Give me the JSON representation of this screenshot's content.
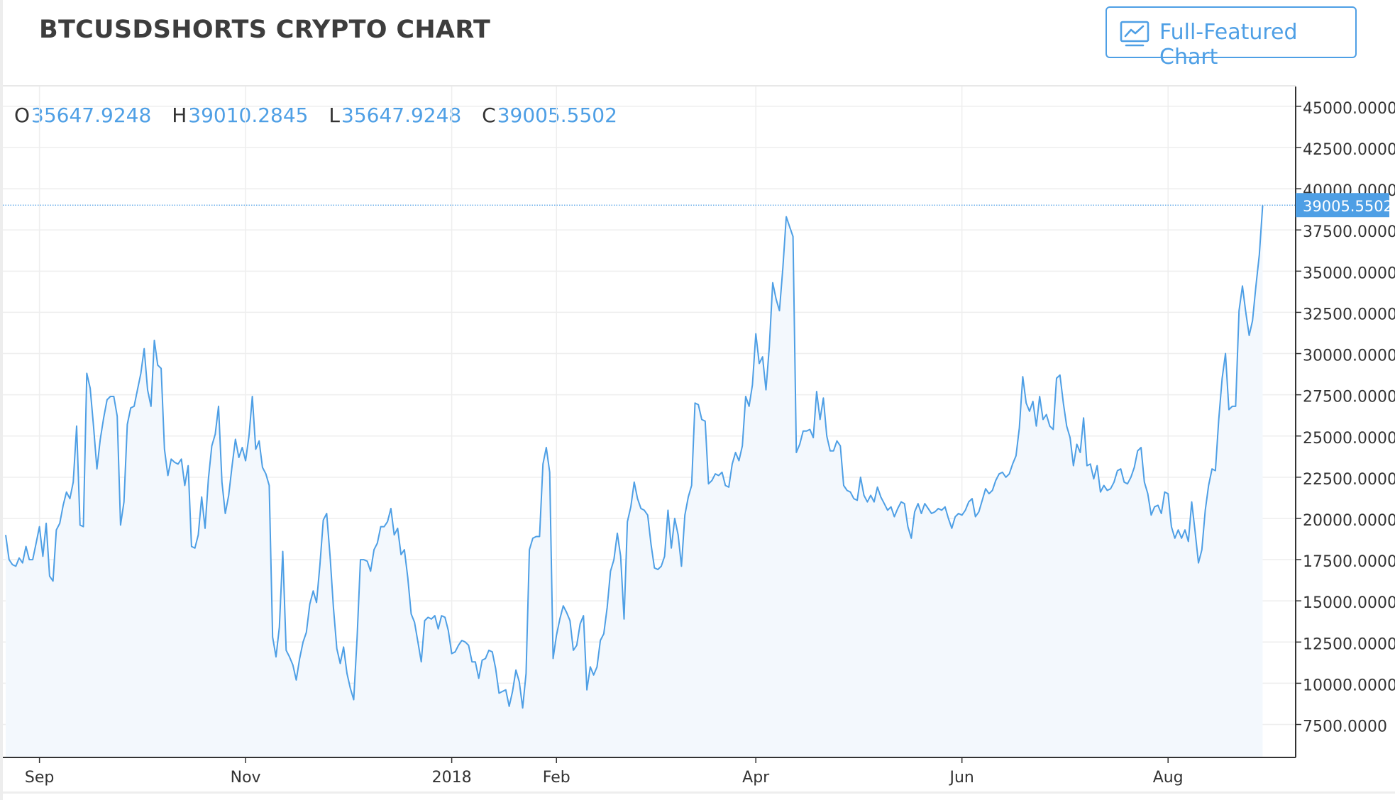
{
  "header": {
    "title": "BTCUSDSHORTS CRYPTO CHART",
    "button_label": "Full-Featured Chart",
    "button_icon": "line-chart-icon"
  },
  "legend": {
    "open_key": "O",
    "open_value": "35647.9248",
    "high_key": "H",
    "high_value": "39010.2845",
    "low_key": "L",
    "low_value": "35647.9248",
    "close_key": "C",
    "close_value": "39005.5502"
  },
  "colors": {
    "line": "#4e9fe5",
    "area": "#f3f8fd",
    "grid": "#eeeeee",
    "axis": "#333333",
    "price_tag_bg": "#4e9fe5",
    "price_tag_text": "#ffffff"
  },
  "chart_data": {
    "type": "area",
    "title": "BTCUSDSHORTS CRYPTO CHART",
    "x_start": "2017-08-22",
    "x_end": "2018-08-27",
    "ylim": [
      5500,
      46200
    ],
    "y_ticks": [
      "45000.0000",
      "42500.0000",
      "40000.0000",
      "37500.0000",
      "35000.0000",
      "32500.0000",
      "30000.0000",
      "27500.0000",
      "25000.0000",
      "22500.0000",
      "20000.0000",
      "17500.0000",
      "15000.0000",
      "12500.0000",
      "10000.0000",
      "7500.0000"
    ],
    "x_ticks": [
      {
        "label": "Sep",
        "date": "2017-09-01"
      },
      {
        "label": "Nov",
        "date": "2017-11-01"
      },
      {
        "label": "2018",
        "date": "2018-01-01"
      },
      {
        "label": "Feb",
        "date": "2018-02-01"
      },
      {
        "label": "Apr",
        "date": "2018-04-01"
      },
      {
        "label": "Jun",
        "date": "2018-06-01"
      },
      {
        "label": "Aug",
        "date": "2018-08-01"
      }
    ],
    "last_price": 39005.5502,
    "last_price_label": "39005.5502",
    "grid": true,
    "series": [
      {
        "x_start": "2017-08-22",
        "x_step_days": 1,
        "values": [
          19000,
          17500,
          17200,
          17100,
          17600,
          17300,
          18300,
          17500,
          17500,
          18500,
          19500,
          17700,
          19700,
          16500,
          16200,
          19300,
          19700,
          20800,
          21600,
          21200,
          22200,
          25600,
          19600,
          19500,
          28800,
          27900,
          25600,
          23000,
          24800,
          26100,
          27200,
          27400,
          27400,
          26200,
          19600,
          21000,
          25700,
          26700,
          26800,
          27800,
          28800,
          30300,
          27800,
          26800,
          30800,
          29300,
          29100,
          24200,
          22600,
          23600,
          23400,
          23300,
          23600,
          22000,
          23200,
          18300,
          18200,
          19000,
          21300,
          19400,
          22400,
          24400,
          25100,
          26800,
          22200,
          20300,
          21400,
          23200,
          24800,
          23700,
          24300,
          23500,
          25000,
          27400,
          24200,
          24700,
          23100,
          22700,
          22000,
          12800,
          11600,
          13400,
          18000,
          12000,
          11600,
          11100,
          10200,
          11500,
          12500,
          13100,
          14800,
          15600,
          14900,
          17200,
          19900,
          20300,
          17700,
          14600,
          12100,
          11200,
          12200,
          10600,
          9700,
          9000,
          12800,
          17500,
          17500,
          17400,
          16800,
          18100,
          18500,
          19500,
          19500,
          19800,
          20600,
          19000,
          19400,
          17800,
          18100,
          16400,
          14200,
          13700,
          12500,
          11300,
          13800,
          14000,
          13900,
          14100,
          13300,
          14100,
          14000,
          13200,
          11800,
          11900,
          12300,
          12600,
          12500,
          12300,
          11300,
          11300,
          10300,
          11400,
          11500,
          12000,
          11900,
          10900,
          9400,
          9500,
          9600,
          8600,
          9500,
          10800,
          10100,
          8500,
          10600,
          18100,
          18800,
          18900,
          18900,
          23300,
          24300,
          22800,
          11500,
          12900,
          13900,
          14700,
          14300,
          13800,
          12000,
          12300,
          13600,
          14100,
          9600,
          11000,
          10500,
          11000,
          12600,
          13000,
          14600,
          16800,
          17500,
          19100,
          17700,
          13900,
          19800,
          20700,
          22200,
          21200,
          20600,
          20500,
          20200,
          18400,
          17000,
          16900,
          17100,
          17700,
          20500,
          18200,
          20000,
          19000,
          17100,
          20200,
          21300,
          22000,
          27000,
          26900,
          26000,
          25900,
          22100,
          22300,
          22700,
          22600,
          22800,
          22000,
          21900,
          23300,
          24000,
          23500,
          24400,
          27400,
          26800,
          28100,
          31200,
          29400,
          29800,
          27800,
          30400,
          34300,
          33300,
          32600,
          35200,
          38300,
          37700,
          37100,
          24000,
          24500,
          25300,
          25300,
          25400,
          24900,
          27700,
          26000,
          27300,
          25000,
          24100,
          24100,
          24700,
          24400,
          22000,
          21700,
          21600,
          21200,
          21100,
          22500,
          21400,
          21000,
          21400,
          21000,
          21900,
          21300,
          20900,
          20500,
          20700,
          20100,
          20600,
          21000,
          20900,
          19500,
          18800,
          20400,
          20900,
          20300,
          20900,
          20600,
          20300,
          20400,
          20600,
          20500,
          20700,
          20000,
          19400,
          20100,
          20300,
          20200,
          20500,
          21000,
          21200,
          20100,
          20400,
          21100,
          21800,
          21500,
          21700,
          22300,
          22700,
          22800,
          22500,
          22700,
          23300,
          23800,
          25500,
          28600,
          27000,
          26500,
          27100,
          25600,
          27400,
          26000,
          26300,
          25600,
          25400,
          28500,
          28700,
          27000,
          25600,
          24900,
          23200,
          24500,
          24000,
          26100,
          23200,
          23300,
          22400,
          23200,
          21600,
          22000,
          21700,
          21800,
          22200,
          22900,
          23000,
          22200,
          22100,
          22500,
          23100,
          24100,
          24300,
          22200,
          21500,
          20200,
          20700,
          20800,
          20300,
          21600,
          21500,
          19500,
          18800,
          19300,
          18800,
          19300,
          18600,
          21000,
          19200,
          17300,
          18100,
          20500,
          22000,
          23000,
          22900,
          26000,
          28500,
          30000,
          26600,
          26800,
          26800,
          32600,
          34100,
          32500,
          31100,
          32000,
          34100,
          36000,
          39000
        ]
      }
    ]
  }
}
